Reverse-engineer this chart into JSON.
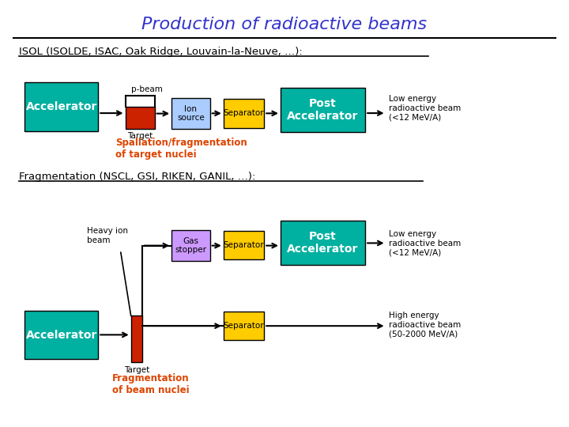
{
  "title": "Production of radioactive beams",
  "title_color": "#3333cc",
  "bg_color": "#ffffff",
  "section1_label": "ISOL (ISOLDE, ISAC, Oak Ridge, Louvain-la-Neuve, …):",
  "section2_label": "Fragmentation (NSCL, GSI, RIKEN, GANIL, …):",
  "colors": {
    "teal": "#00b0a0",
    "red": "#cc2200",
    "light_blue": "#aaccff",
    "yellow": "#ffcc00",
    "purple": "#cc99ff",
    "orange_red": "#dd4400",
    "black": "#000000",
    "white": "#ffffff"
  }
}
